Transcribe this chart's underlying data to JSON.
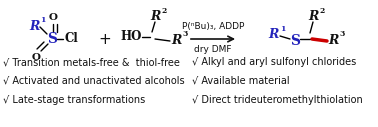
{
  "bg_color": "#ffffff",
  "blue": "#2222bb",
  "red": "#cc0000",
  "black": "#111111",
  "gray": "#444444",
  "arrow_label_top": "P(ⁿBu)₃, ADDP",
  "arrow_label_bot": "dry DMF",
  "left_bullets": [
    "√ Transition metals-free &  thiol-free",
    "√ Activated and unactivated alcohols",
    "√ Late-stage transformations"
  ],
  "right_bullets": [
    "√ Alkyl and aryl sulfonyl chlorides",
    "√ Available material",
    "√ Direct trideuteromethylthiolation"
  ],
  "fig_width": 3.78,
  "fig_height": 1.27,
  "dpi": 100
}
